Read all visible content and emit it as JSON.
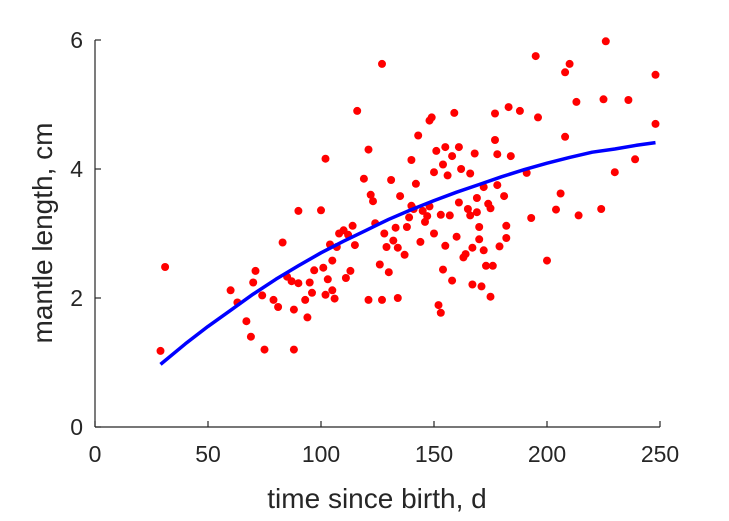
{
  "chart_data": {
    "type": "scatter",
    "title": "",
    "xlabel": "time since birth, d",
    "ylabel": "mantle length, cm",
    "xlim": [
      0,
      250
    ],
    "ylim": [
      0,
      6
    ],
    "xticks": [
      0,
      50,
      100,
      150,
      200,
      250
    ],
    "yticks": [
      0,
      2,
      4,
      6
    ],
    "xtick_labels": [
      "0",
      "50",
      "100",
      "150",
      "200",
      "250"
    ],
    "ytick_labels": [
      "0",
      "2",
      "4",
      "6"
    ],
    "grid": false,
    "legend": "none",
    "series": [
      {
        "kind": "scatter",
        "color": "#ff0000",
        "points": [
          [
            29,
            1.18
          ],
          [
            31,
            2.48
          ],
          [
            60,
            2.12
          ],
          [
            63,
            1.93
          ],
          [
            67,
            1.64
          ],
          [
            69,
            1.4
          ],
          [
            70,
            2.24
          ],
          [
            71,
            2.42
          ],
          [
            74,
            2.04
          ],
          [
            75,
            1.2
          ],
          [
            79,
            1.97
          ],
          [
            81,
            1.86
          ],
          [
            83,
            2.86
          ],
          [
            85,
            2.33
          ],
          [
            87,
            2.26
          ],
          [
            88,
            1.2
          ],
          [
            88,
            1.82
          ],
          [
            90,
            2.23
          ],
          [
            90,
            3.35
          ],
          [
            93,
            1.97
          ],
          [
            94,
            1.7
          ],
          [
            95,
            2.24
          ],
          [
            96,
            2.08
          ],
          [
            97,
            2.43
          ],
          [
            100,
            3.36
          ],
          [
            101,
            2.47
          ],
          [
            102,
            2.05
          ],
          [
            102,
            4.16
          ],
          [
            103,
            2.29
          ],
          [
            104,
            2.83
          ],
          [
            105,
            2.12
          ],
          [
            105,
            2.58
          ],
          [
            106,
            1.99
          ],
          [
            107,
            2.79
          ],
          [
            108,
            3.0
          ],
          [
            110,
            3.05
          ],
          [
            111,
            2.31
          ],
          [
            112,
            2.98
          ],
          [
            113,
            2.42
          ],
          [
            114,
            3.12
          ],
          [
            115,
            2.82
          ],
          [
            116,
            4.9
          ],
          [
            119,
            3.85
          ],
          [
            121,
            1.97
          ],
          [
            121,
            4.3
          ],
          [
            122,
            3.6
          ],
          [
            123,
            3.5
          ],
          [
            124,
            3.16
          ],
          [
            126,
            2.52
          ],
          [
            127,
            1.97
          ],
          [
            127,
            5.63
          ],
          [
            128,
            3.0
          ],
          [
            129,
            2.79
          ],
          [
            130,
            2.4
          ],
          [
            131,
            3.83
          ],
          [
            132,
            2.89
          ],
          [
            133,
            3.09
          ],
          [
            134,
            2.0
          ],
          [
            134,
            2.78
          ],
          [
            135,
            3.58
          ],
          [
            137,
            2.67
          ],
          [
            138,
            3.1
          ],
          [
            139,
            3.25
          ],
          [
            140,
            3.43
          ],
          [
            140,
            4.14
          ],
          [
            141,
            3.38
          ],
          [
            142,
            3.77
          ],
          [
            143,
            4.52
          ],
          [
            144,
            2.87
          ],
          [
            145,
            3.35
          ],
          [
            146,
            3.18
          ],
          [
            147,
            3.27
          ],
          [
            148,
            3.42
          ],
          [
            148,
            4.75
          ],
          [
            149,
            4.8
          ],
          [
            150,
            3.0
          ],
          [
            150,
            3.95
          ],
          [
            151,
            4.28
          ],
          [
            152,
            1.89
          ],
          [
            153,
            1.77
          ],
          [
            153,
            3.29
          ],
          [
            154,
            2.44
          ],
          [
            154,
            4.07
          ],
          [
            155,
            4.34
          ],
          [
            155,
            2.81
          ],
          [
            156,
            3.9
          ],
          [
            157,
            3.28
          ],
          [
            158,
            2.27
          ],
          [
            158,
            4.2
          ],
          [
            159,
            4.87
          ],
          [
            160,
            2.95
          ],
          [
            161,
            4.34
          ],
          [
            161,
            3.48
          ],
          [
            162,
            4.0
          ],
          [
            163,
            2.63
          ],
          [
            164,
            2.68
          ],
          [
            165,
            3.38
          ],
          [
            166,
            3.93
          ],
          [
            166,
            3.28
          ],
          [
            167,
            2.21
          ],
          [
            167,
            2.78
          ],
          [
            168,
            4.24
          ],
          [
            169,
            3.55
          ],
          [
            169,
            3.33
          ],
          [
            170,
            2.91
          ],
          [
            170,
            3.1
          ],
          [
            171,
            2.18
          ],
          [
            172,
            3.72
          ],
          [
            172,
            2.74
          ],
          [
            173,
            2.5
          ],
          [
            174,
            3.46
          ],
          [
            175,
            3.39
          ],
          [
            175,
            2.02
          ],
          [
            176,
            2.5
          ],
          [
            177,
            4.45
          ],
          [
            177,
            4.86
          ],
          [
            178,
            3.75
          ],
          [
            178,
            4.23
          ],
          [
            179,
            2.8
          ],
          [
            181,
            3.58
          ],
          [
            182,
            2.93
          ],
          [
            182,
            3.12
          ],
          [
            183,
            4.96
          ],
          [
            184,
            4.2
          ],
          [
            188,
            4.9
          ],
          [
            191,
            3.94
          ],
          [
            193,
            3.24
          ],
          [
            195,
            5.75
          ],
          [
            196,
            4.8
          ],
          [
            200,
            2.58
          ],
          [
            204,
            3.37
          ],
          [
            206,
            3.62
          ],
          [
            208,
            4.5
          ],
          [
            208,
            5.5
          ],
          [
            210,
            5.63
          ],
          [
            213,
            5.04
          ],
          [
            214,
            3.28
          ],
          [
            224,
            3.38
          ],
          [
            225,
            5.08
          ],
          [
            226,
            5.98
          ],
          [
            230,
            3.95
          ],
          [
            236,
            5.07
          ],
          [
            239,
            4.15
          ],
          [
            248,
            4.7
          ],
          [
            248,
            5.46
          ]
        ]
      },
      {
        "kind": "line",
        "color": "#0000ff",
        "description": "fitted growth curve",
        "points": [
          [
            29,
            0.97
          ],
          [
            40,
            1.29
          ],
          [
            50,
            1.56
          ],
          [
            60,
            1.81
          ],
          [
            70,
            2.06
          ],
          [
            80,
            2.29
          ],
          [
            90,
            2.5
          ],
          [
            100,
            2.7
          ],
          [
            110,
            2.88
          ],
          [
            120,
            3.05
          ],
          [
            130,
            3.22
          ],
          [
            140,
            3.37
          ],
          [
            150,
            3.51
          ],
          [
            160,
            3.64
          ],
          [
            170,
            3.76
          ],
          [
            180,
            3.88
          ],
          [
            190,
            3.99
          ],
          [
            200,
            4.09
          ],
          [
            210,
            4.18
          ],
          [
            220,
            4.26
          ],
          [
            230,
            4.31
          ],
          [
            240,
            4.37
          ],
          [
            248,
            4.41
          ]
        ]
      }
    ]
  }
}
